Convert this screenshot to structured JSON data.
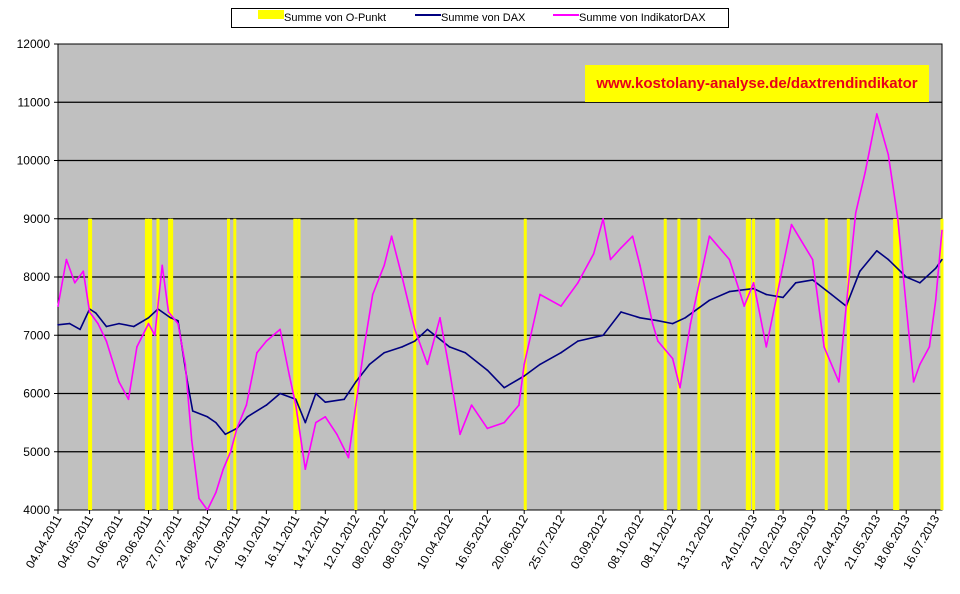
{
  "chart_data": {
    "type": "line",
    "watermark": "www.kostolany-analyse.de/daxtrendindikator",
    "ylim": [
      4000,
      12000
    ],
    "y_ticks": [
      "4000",
      "5000",
      "6000",
      "7000",
      "8000",
      "9000",
      "10000",
      "11000",
      "12000"
    ],
    "x_ticks": [
      "04.04.2011",
      "04.05.2011",
      "01.06.2011",
      "29.06.2011",
      "27.07.2011",
      "24.08.2011",
      "21.09.2011",
      "19.10.2011",
      "16.11.2011",
      "14.12.2011",
      "12.01.2012",
      "08.02.2012",
      "08.03.2012",
      "10.04.2012",
      "16.05.2012",
      "20.06.2012",
      "25.07.2012",
      "03.09.2012",
      "08.10.2012",
      "08.11.2012",
      "13.12.2012",
      "24.01.2013",
      "21.02.2013",
      "21.03.2013",
      "22.04.2013",
      "21.05.2013",
      "18.06.2013",
      "16.07.2013"
    ],
    "grid": true,
    "legend_position": "top",
    "colors": {
      "o_punkt": "#ffff00",
      "dax": "#000080",
      "indikator": "#ff00ff",
      "plot_bg": "#c0c0c0"
    },
    "series": [
      {
        "name": "Summe von O-Punkt",
        "style": "bars",
        "value_when_on": 9000,
        "on_periods": [
          [
            "04.05.2011",
            "04.05.2011"
          ],
          [
            "05.05.2011",
            "05.05.2011"
          ],
          [
            "27.06.2011",
            "28.06.2011"
          ],
          [
            "30.06.2011",
            "01.07.2011"
          ],
          [
            "08.07.2011",
            "08.07.2011"
          ],
          [
            "19.07.2011",
            "19.07.2011"
          ],
          [
            "21.07.2011",
            "21.07.2011"
          ],
          [
            "13.09.2011",
            "13.09.2011"
          ],
          [
            "19.09.2011",
            "19.09.2011"
          ],
          [
            "15.11.2011",
            "16.11.2011"
          ],
          [
            "19.11.2011",
            "19.11.2011"
          ],
          [
            "12.01.2012",
            "12.01.2012"
          ],
          [
            "08.03.2012",
            "08.03.2012"
          ],
          [
            "21.06.2012",
            "21.06.2012"
          ],
          [
            "01.11.2012",
            "01.11.2012"
          ],
          [
            "14.11.2012",
            "14.11.2012"
          ],
          [
            "03.12.2012",
            "03.12.2012"
          ],
          [
            "18.01.2013",
            "20.01.2013"
          ],
          [
            "24.01.2013",
            "24.01.2013"
          ],
          [
            "15.02.2013",
            "16.02.2013"
          ],
          [
            "03.04.2013",
            "03.04.2013"
          ],
          [
            "24.04.2013",
            "24.04.2013"
          ],
          [
            "07.06.2013",
            "10.06.2013"
          ],
          [
            "22.07.2013",
            "22.07.2013"
          ]
        ]
      },
      {
        "name": "Summe von DAX",
        "style": "line",
        "points": [
          [
            "04.04.2011",
            7180
          ],
          [
            "15.04.2011",
            7200
          ],
          [
            "25.04.2011",
            7100
          ],
          [
            "04.05.2011",
            7450
          ],
          [
            "10.05.2011",
            7380
          ],
          [
            "20.05.2011",
            7150
          ],
          [
            "01.06.2011",
            7200
          ],
          [
            "15.06.2011",
            7150
          ],
          [
            "29.06.2011",
            7300
          ],
          [
            "08.07.2011",
            7450
          ],
          [
            "20.07.2011",
            7300
          ],
          [
            "27.07.2011",
            7250
          ],
          [
            "05.08.2011",
            6200
          ],
          [
            "10.08.2011",
            5700
          ],
          [
            "24.08.2011",
            5600
          ],
          [
            "01.09.2011",
            5500
          ],
          [
            "10.09.2011",
            5300
          ],
          [
            "21.09.2011",
            5400
          ],
          [
            "01.10.2011",
            5600
          ],
          [
            "19.10.2011",
            5800
          ],
          [
            "01.11.2011",
            6000
          ],
          [
            "16.11.2011",
            5900
          ],
          [
            "25.11.2011",
            5500
          ],
          [
            "05.12.2011",
            6000
          ],
          [
            "14.12.2011",
            5850
          ],
          [
            "01.01.2012",
            5900
          ],
          [
            "12.01.2012",
            6200
          ],
          [
            "25.01.2012",
            6500
          ],
          [
            "08.02.2012",
            6700
          ],
          [
            "25.02.2012",
            6800
          ],
          [
            "08.03.2012",
            6900
          ],
          [
            "20.03.2012",
            7100
          ],
          [
            "10.04.2012",
            6800
          ],
          [
            "25.04.2012",
            6700
          ],
          [
            "16.05.2012",
            6400
          ],
          [
            "01.06.2012",
            6100
          ],
          [
            "20.06.2012",
            6300
          ],
          [
            "05.07.2012",
            6500
          ],
          [
            "25.07.2012",
            6700
          ],
          [
            "10.08.2012",
            6900
          ],
          [
            "03.09.2012",
            7000
          ],
          [
            "20.09.2012",
            7400
          ],
          [
            "08.10.2012",
            7300
          ],
          [
            "25.10.2012",
            7250
          ],
          [
            "08.11.2012",
            7200
          ],
          [
            "20.11.2012",
            7300
          ],
          [
            "13.12.2012",
            7600
          ],
          [
            "01.01.2013",
            7750
          ],
          [
            "24.01.2013",
            7800
          ],
          [
            "05.02.2013",
            7700
          ],
          [
            "21.02.2013",
            7650
          ],
          [
            "05.03.2013",
            7900
          ],
          [
            "21.03.2013",
            7950
          ],
          [
            "08.04.2013",
            7700
          ],
          [
            "22.04.2013",
            7500
          ],
          [
            "05.05.2013",
            8100
          ],
          [
            "21.05.2013",
            8450
          ],
          [
            "01.06.2013",
            8300
          ],
          [
            "18.06.2013",
            8000
          ],
          [
            "01.07.2013",
            7900
          ],
          [
            "16.07.2013",
            8150
          ],
          [
            "22.07.2013",
            8300
          ]
        ]
      },
      {
        "name": "Summe von IndikatorDAX",
        "style": "line",
        "points": [
          [
            "04.04.2011",
            7500
          ],
          [
            "12.04.2011",
            8300
          ],
          [
            "20.04.2011",
            7900
          ],
          [
            "28.04.2011",
            8100
          ],
          [
            "04.05.2011",
            7400
          ],
          [
            "12.05.2011",
            7200
          ],
          [
            "20.05.2011",
            6900
          ],
          [
            "01.06.2011",
            6200
          ],
          [
            "10.06.2011",
            5900
          ],
          [
            "18.06.2011",
            6800
          ],
          [
            "29.06.2011",
            7200
          ],
          [
            "05.07.2011",
            7000
          ],
          [
            "12.07.2011",
            8200
          ],
          [
            "18.07.2011",
            7400
          ],
          [
            "27.07.2011",
            7200
          ],
          [
            "03.08.2011",
            6500
          ],
          [
            "09.08.2011",
            5200
          ],
          [
            "16.08.2011",
            4200
          ],
          [
            "24.08.2011",
            4000
          ],
          [
            "01.09.2011",
            4300
          ],
          [
            "08.09.2011",
            4700
          ],
          [
            "15.09.2011",
            5000
          ],
          [
            "21.09.2011",
            5400
          ],
          [
            "30.09.2011",
            5800
          ],
          [
            "10.10.2011",
            6700
          ],
          [
            "19.10.2011",
            6900
          ],
          [
            "01.11.2011",
            7100
          ],
          [
            "10.11.2011",
            6300
          ],
          [
            "16.11.2011",
            5800
          ],
          [
            "25.11.2011",
            4700
          ],
          [
            "05.12.2011",
            5500
          ],
          [
            "14.12.2011",
            5600
          ],
          [
            "25.12.2011",
            5300
          ],
          [
            "05.01.2012",
            4900
          ],
          [
            "12.01.2012",
            5800
          ],
          [
            "20.01.2012",
            6800
          ],
          [
            "28.01.2012",
            7700
          ],
          [
            "08.02.2012",
            8200
          ],
          [
            "15.02.2012",
            8700
          ],
          [
            "25.02.2012",
            8000
          ],
          [
            "08.03.2012",
            7100
          ],
          [
            "20.03.2012",
            6500
          ],
          [
            "01.04.2012",
            7300
          ],
          [
            "10.04.2012",
            6400
          ],
          [
            "20.04.2012",
            5300
          ],
          [
            "01.05.2012",
            5800
          ],
          [
            "16.05.2012",
            5400
          ],
          [
            "01.06.2012",
            5500
          ],
          [
            "15.06.2012",
            5800
          ],
          [
            "20.06.2012",
            6500
          ],
          [
            "05.07.2012",
            7700
          ],
          [
            "25.07.2012",
            7500
          ],
          [
            "10.08.2012",
            7900
          ],
          [
            "25.08.2012",
            8400
          ],
          [
            "03.09.2012",
            9000
          ],
          [
            "10.09.2012",
            8300
          ],
          [
            "20.09.2012",
            8500
          ],
          [
            "01.10.2012",
            8700
          ],
          [
            "08.10.2012",
            8200
          ],
          [
            "20.10.2012",
            7200
          ],
          [
            "25.10.2012",
            6900
          ],
          [
            "08.11.2012",
            6600
          ],
          [
            "15.11.2012",
            6100
          ],
          [
            "25.11.2012",
            7200
          ],
          [
            "13.12.2012",
            8700
          ],
          [
            "01.01.2013",
            8300
          ],
          [
            "15.01.2013",
            7500
          ],
          [
            "24.01.2013",
            7900
          ],
          [
            "05.02.2013",
            6800
          ],
          [
            "21.02.2013",
            8200
          ],
          [
            "01.03.2013",
            8900
          ],
          [
            "21.03.2013",
            8300
          ],
          [
            "01.04.2013",
            6800
          ],
          [
            "15.04.2013",
            6200
          ],
          [
            "22.04.2013",
            7500
          ],
          [
            "01.05.2013",
            9100
          ],
          [
            "10.05.2013",
            9800
          ],
          [
            "21.05.2013",
            10800
          ],
          [
            "01.06.2013",
            10100
          ],
          [
            "10.06.2013",
            9000
          ],
          [
            "18.06.2013",
            7500
          ],
          [
            "25.06.2013",
            6200
          ],
          [
            "01.07.2013",
            6500
          ],
          [
            "10.07.2013",
            6800
          ],
          [
            "16.07.2013",
            7600
          ],
          [
            "22.07.2013",
            8800
          ]
        ]
      }
    ]
  }
}
